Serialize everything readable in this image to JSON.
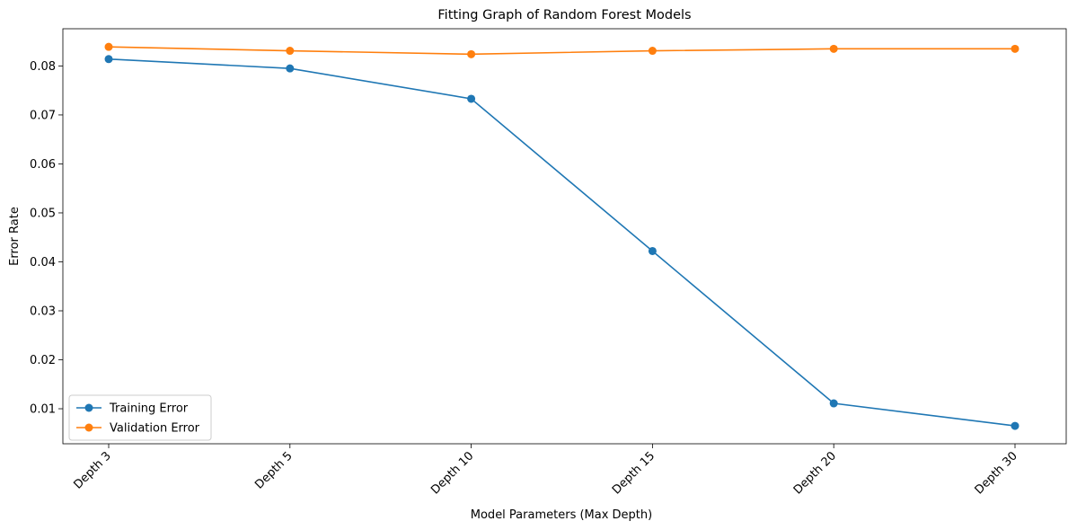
{
  "chart_data": {
    "type": "line",
    "title": "Fitting Graph of Random Forest Models",
    "xlabel": "Model Parameters (Max Depth)",
    "ylabel": "Error Rate",
    "categories": [
      "Depth 3",
      "Depth 5",
      "Depth 10",
      "Depth 15",
      "Depth 20",
      "Depth 30"
    ],
    "yticks": [
      "0.01",
      "0.02",
      "0.03",
      "0.04",
      "0.05",
      "0.06",
      "0.07",
      "0.08"
    ],
    "ylim": [
      0.00285,
      0.0876
    ],
    "grid": false,
    "legend_position": "lower-left",
    "series": [
      {
        "name": "Training Error",
        "color": "#1f77b4",
        "marker": "circle",
        "values": [
          0.0814,
          0.0795,
          0.0733,
          0.0422,
          0.0111,
          0.0065
        ]
      },
      {
        "name": "Validation Error",
        "color": "#ff7f0e",
        "marker": "circle",
        "values": [
          0.0839,
          0.0831,
          0.0824,
          0.0831,
          0.0835,
          0.0835
        ]
      }
    ]
  }
}
